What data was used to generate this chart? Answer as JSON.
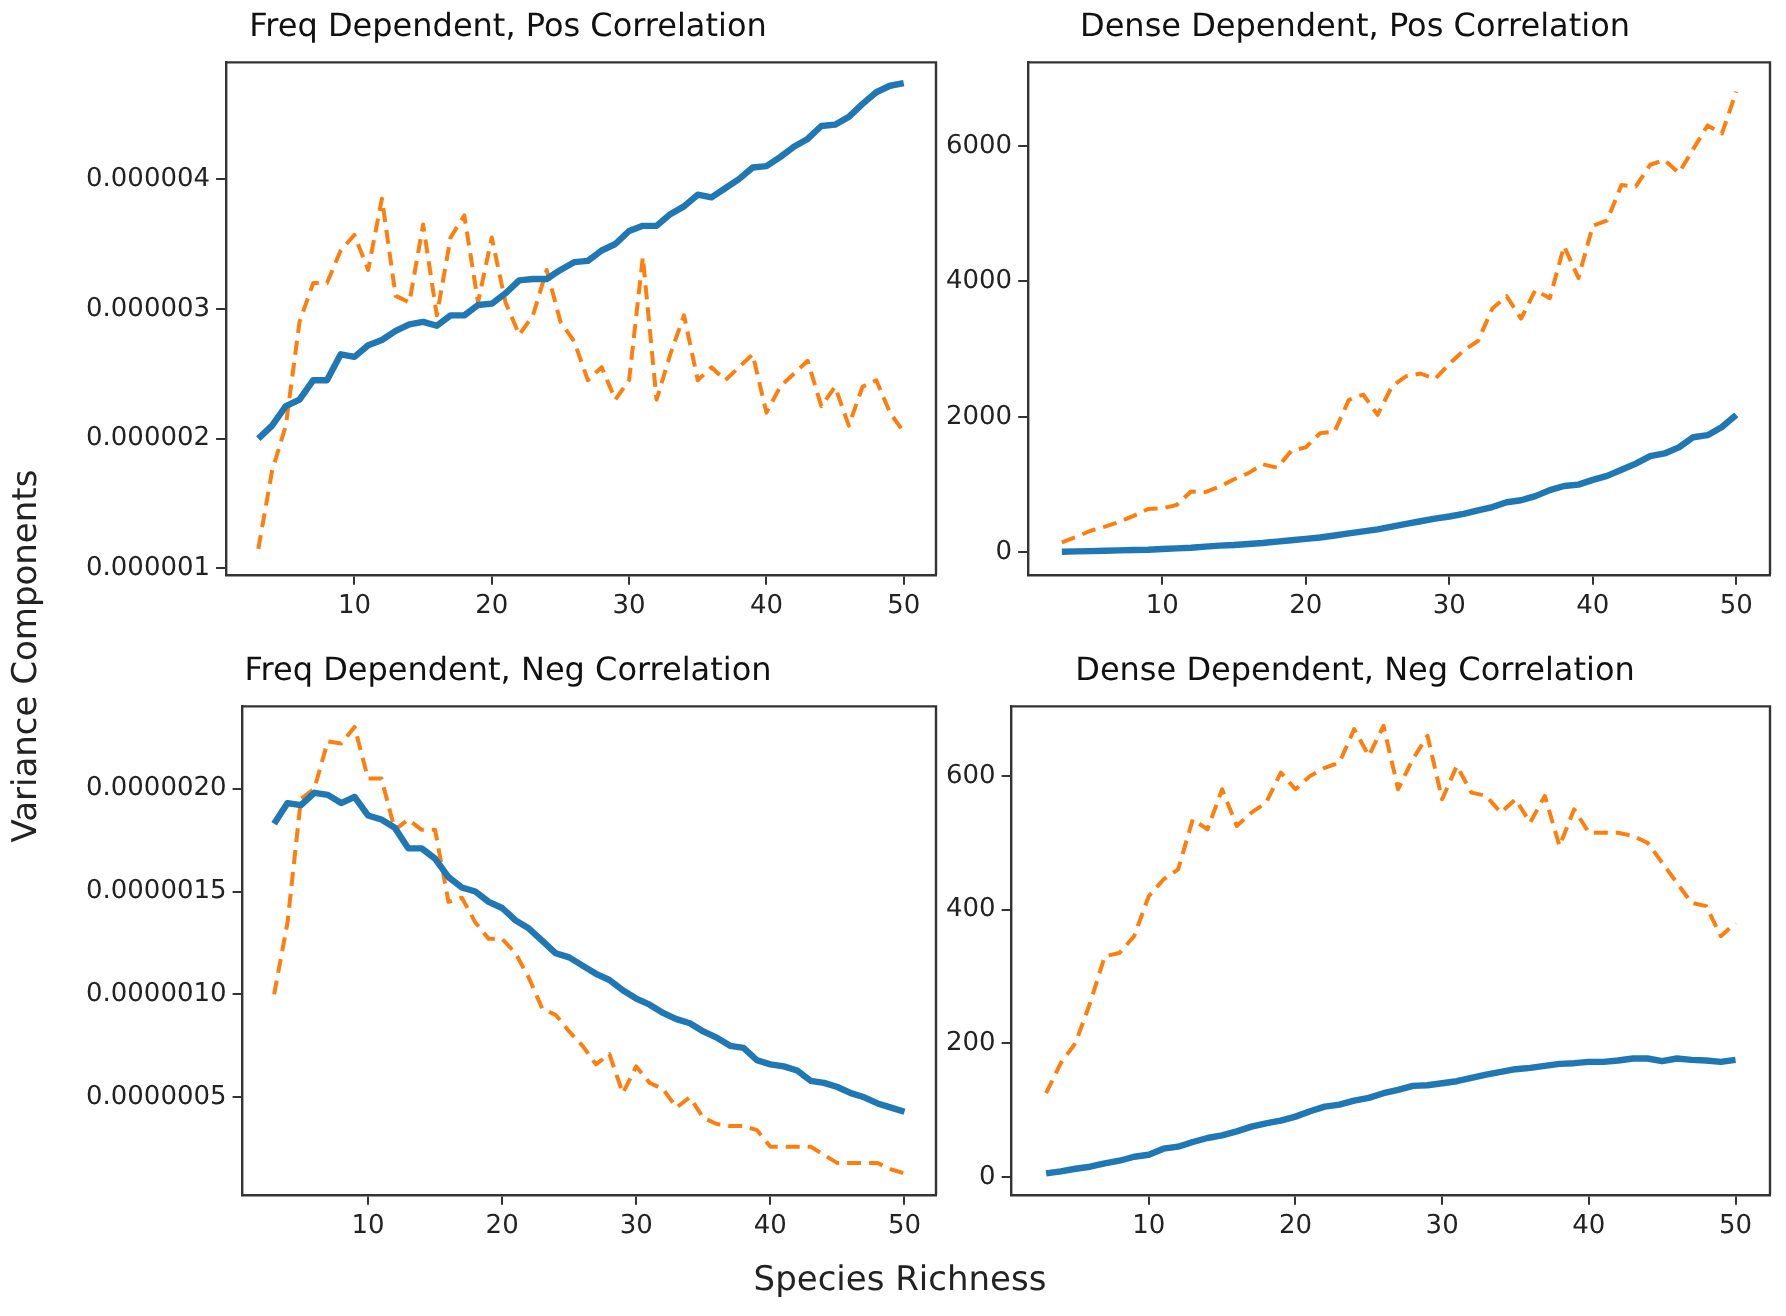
{
  "chart_data": [
    {
      "type": "line",
      "title": "Freq Dependent, Pos Correlation",
      "ylabel": "Variance Components",
      "grid": false,
      "legend": false,
      "x": [
        3,
        4,
        5,
        6,
        7,
        8,
        9,
        10,
        11,
        12,
        13,
        14,
        15,
        16,
        17,
        18,
        19,
        20,
        21,
        22,
        23,
        24,
        25,
        26,
        27,
        28,
        29,
        30,
        31,
        32,
        33,
        34,
        35,
        36,
        37,
        38,
        39,
        40,
        41,
        42,
        43,
        44,
        45,
        46,
        47,
        48,
        49,
        50
      ],
      "xlim": [
        0.65,
        52.35
      ],
      "xticks": [
        10,
        20,
        30,
        40,
        50
      ],
      "ylim": [
        9.5e-07,
        4.9e-06
      ],
      "yticks": [
        {
          "value": 1e-06,
          "label": "0.000001"
        },
        {
          "value": 2e-06,
          "label": "0.000002"
        },
        {
          "value": 3e-06,
          "label": "0.000003"
        },
        {
          "value": 4e-06,
          "label": "0.000004"
        }
      ],
      "series": [
        {
          "color": "#1f77b4",
          "line_style": "solid",
          "values": [
            2e-06,
            2.1e-06,
            2.25e-06,
            2.3e-06,
            2.45e-06,
            2.45e-06,
            2.65e-06,
            2.63e-06,
            2.72e-06,
            2.76e-06,
            2.83e-06,
            2.88e-06,
            2.9e-06,
            2.87e-06,
            2.95e-06,
            2.95e-06,
            3.03e-06,
            3.04e-06,
            3.12e-06,
            3.22e-06,
            3.23e-06,
            3.23e-06,
            3.3e-06,
            3.36e-06,
            3.37e-06,
            3.45e-06,
            3.5e-06,
            3.6e-06,
            3.64e-06,
            3.64e-06,
            3.73e-06,
            3.79e-06,
            3.88e-06,
            3.86e-06,
            3.93e-06,
            4e-06,
            4.09e-06,
            4.1e-06,
            4.17e-06,
            4.25e-06,
            4.31e-06,
            4.41e-06,
            4.42e-06,
            4.48e-06,
            4.58e-06,
            4.67e-06,
            4.72e-06,
            4.74e-06
          ]
        },
        {
          "color": "#ff7f0e",
          "line_style": "dashed",
          "values": [
            1.15e-06,
            1.75e-06,
            2.1e-06,
            2.9e-06,
            3.2e-06,
            3.2e-06,
            3.45e-06,
            3.57e-06,
            3.3e-06,
            3.85e-06,
            3.1e-06,
            3.05e-06,
            3.65e-06,
            2.95e-06,
            3.55e-06,
            3.72e-06,
            3.05e-06,
            3.55e-06,
            3.05e-06,
            2.8e-06,
            2.95e-06,
            3.3e-06,
            2.9e-06,
            2.75e-06,
            2.45e-06,
            2.55e-06,
            2.3e-06,
            2.45e-06,
            3.4e-06,
            2.3e-06,
            2.65e-06,
            2.95e-06,
            2.45e-06,
            2.55e-06,
            2.45e-06,
            2.55e-06,
            2.65e-06,
            2.2e-06,
            2.4e-06,
            2.5e-06,
            2.6e-06,
            2.25e-06,
            2.4e-06,
            2.1e-06,
            2.4e-06,
            2.45e-06,
            2.2e-06,
            2.05e-06
          ]
        }
      ]
    },
    {
      "type": "line",
      "title": "Dense Dependent, Pos Correlation",
      "grid": false,
      "legend": false,
      "x": [
        3,
        4,
        5,
        6,
        7,
        8,
        9,
        10,
        11,
        12,
        13,
        14,
        15,
        16,
        17,
        18,
        19,
        20,
        21,
        22,
        23,
        24,
        25,
        26,
        27,
        28,
        29,
        30,
        31,
        32,
        33,
        34,
        35,
        36,
        37,
        38,
        39,
        40,
        41,
        42,
        43,
        44,
        45,
        46,
        47,
        48,
        49,
        50
      ],
      "xlim": [
        0.65,
        52.35
      ],
      "xticks": [
        10,
        20,
        30,
        40,
        50
      ],
      "ylim": [
        -330,
        7230
      ],
      "yticks": [
        0,
        2000,
        4000,
        6000
      ],
      "series": [
        {
          "color": "#1f77b4",
          "line_style": "solid",
          "values": [
            10,
            15,
            20,
            25,
            30,
            35,
            40,
            50,
            60,
            70,
            85,
            100,
            110,
            125,
            140,
            160,
            180,
            200,
            220,
            250,
            280,
            310,
            340,
            380,
            420,
            460,
            500,
            530,
            570,
            620,
            670,
            740,
            770,
            830,
            920,
            980,
            1000,
            1070,
            1130,
            1220,
            1310,
            1420,
            1460,
            1550,
            1700,
            1730,
            1850,
            2030
          ]
        },
        {
          "color": "#ff7f0e",
          "line_style": "dashed",
          "values": [
            150,
            230,
            320,
            380,
            450,
            540,
            640,
            650,
            700,
            900,
            890,
            970,
            1080,
            1170,
            1300,
            1250,
            1500,
            1550,
            1760,
            1780,
            2250,
            2330,
            2030,
            2450,
            2600,
            2640,
            2560,
            2780,
            2980,
            3120,
            3600,
            3780,
            3450,
            3870,
            3750,
            4520,
            4050,
            4820,
            4900,
            5420,
            5400,
            5720,
            5790,
            5600,
            5950,
            6300,
            6180,
            6800
          ]
        }
      ]
    },
    {
      "type": "line",
      "title": "Freq Dependent, Neg Correlation",
      "xlabel": "Species Richness",
      "grid": false,
      "legend": false,
      "x": [
        3,
        4,
        5,
        6,
        7,
        8,
        9,
        10,
        11,
        12,
        13,
        14,
        15,
        16,
        17,
        18,
        19,
        20,
        21,
        22,
        23,
        24,
        25,
        26,
        27,
        28,
        29,
        30,
        31,
        32,
        33,
        34,
        35,
        36,
        37,
        38,
        39,
        40,
        41,
        42,
        43,
        44,
        45,
        46,
        47,
        48,
        49,
        50
      ],
      "xlim": [
        0.65,
        52.35
      ],
      "xticks": [
        10,
        20,
        30,
        40,
        50
      ],
      "ylim": [
        2.6e-08,
        2.4e-06
      ],
      "yticks": [
        {
          "value": 5e-07,
          "label": "0.0000005"
        },
        {
          "value": 1e-06,
          "label": "0.0000010"
        },
        {
          "value": 1.5e-06,
          "label": "0.0000015"
        },
        {
          "value": 2e-06,
          "label": "0.0000020"
        }
      ],
      "series": [
        {
          "color": "#1f77b4",
          "line_style": "solid",
          "values": [
            1.83e-06,
            1.93e-06,
            1.92e-06,
            1.98e-06,
            1.97e-06,
            1.93e-06,
            1.96e-06,
            1.87e-06,
            1.85e-06,
            1.81e-06,
            1.71e-06,
            1.71e-06,
            1.66e-06,
            1.57e-06,
            1.52e-06,
            1.5e-06,
            1.45e-06,
            1.42e-06,
            1.36e-06,
            1.32e-06,
            1.26e-06,
            1.2e-06,
            1.18e-06,
            1.14e-06,
            1.1e-06,
            1.07e-06,
            1.02e-06,
            9.8e-07,
            9.5e-07,
            9.1e-07,
            8.8e-07,
            8.6e-07,
            8.2e-07,
            7.9e-07,
            7.5e-07,
            7.4e-07,
            6.8e-07,
            6.6e-07,
            6.5e-07,
            6.3e-07,
            5.8e-07,
            5.7e-07,
            5.5e-07,
            5.2e-07,
            5e-07,
            4.7e-07,
            4.5e-07,
            4.3e-07
          ]
        },
        {
          "color": "#ff7f0e",
          "line_style": "dashed",
          "values": [
            1e-06,
            1.35e-06,
            1.95e-06,
            2e-06,
            2.23e-06,
            2.22e-06,
            2.3e-06,
            2.05e-06,
            2.05e-06,
            1.8e-06,
            1.85e-06,
            1.8e-06,
            1.8e-06,
            1.45e-06,
            1.47e-06,
            1.35e-06,
            1.27e-06,
            1.27e-06,
            1.2e-06,
            1.08e-06,
            9.3e-07,
            9e-07,
            8.2e-07,
            7.5e-07,
            6.6e-07,
            7.1e-07,
            5.2e-07,
            6.5e-07,
            5.7e-07,
            5.4e-07,
            4.5e-07,
            5e-07,
            4e-07,
            3.7e-07,
            3.6e-07,
            3.6e-07,
            3.4e-07,
            2.6e-07,
            2.6e-07,
            2.6e-07,
            2.6e-07,
            2.2e-07,
            1.8e-07,
            1.8e-07,
            1.8e-07,
            1.8e-07,
            1.5e-07,
            1.3e-07
          ]
        }
      ]
    },
    {
      "type": "line",
      "title": "Dense Dependent, Neg Correlation",
      "grid": false,
      "legend": false,
      "x": [
        3,
        4,
        5,
        6,
        7,
        8,
        9,
        10,
        11,
        12,
        13,
        14,
        15,
        16,
        17,
        18,
        19,
        20,
        21,
        22,
        23,
        24,
        25,
        26,
        27,
        28,
        29,
        30,
        31,
        32,
        33,
        34,
        35,
        36,
        37,
        38,
        39,
        40,
        41,
        42,
        43,
        44,
        45,
        46,
        47,
        48,
        49,
        50
      ],
      "xlim": [
        0.65,
        52.35
      ],
      "xticks": [
        10,
        20,
        30,
        40,
        50
      ],
      "ylim": [
        -27,
        704
      ],
      "yticks": [
        0,
        200,
        400,
        600
      ],
      "series": [
        {
          "color": "#1f77b4",
          "line_style": "solid",
          "values": [
            5,
            8,
            12,
            15,
            20,
            24,
            30,
            33,
            42,
            45,
            52,
            58,
            62,
            68,
            75,
            80,
            84,
            90,
            98,
            105,
            108,
            114,
            118,
            125,
            130,
            136,
            137,
            140,
            143,
            148,
            153,
            157,
            161,
            163,
            166,
            169,
            170,
            172,
            172,
            174,
            177,
            177,
            173,
            177,
            175,
            174,
            172,
            175
          ]
        },
        {
          "color": "#ff7f0e",
          "line_style": "dashed",
          "values": [
            125,
            170,
            200,
            260,
            330,
            335,
            360,
            420,
            445,
            460,
            535,
            520,
            580,
            525,
            545,
            560,
            605,
            580,
            600,
            612,
            620,
            670,
            630,
            675,
            580,
            625,
            660,
            565,
            615,
            575,
            570,
            545,
            565,
            530,
            570,
            495,
            550,
            515,
            515,
            515,
            510,
            500,
            470,
            440,
            410,
            405,
            360,
            380
          ]
        }
      ]
    }
  ]
}
